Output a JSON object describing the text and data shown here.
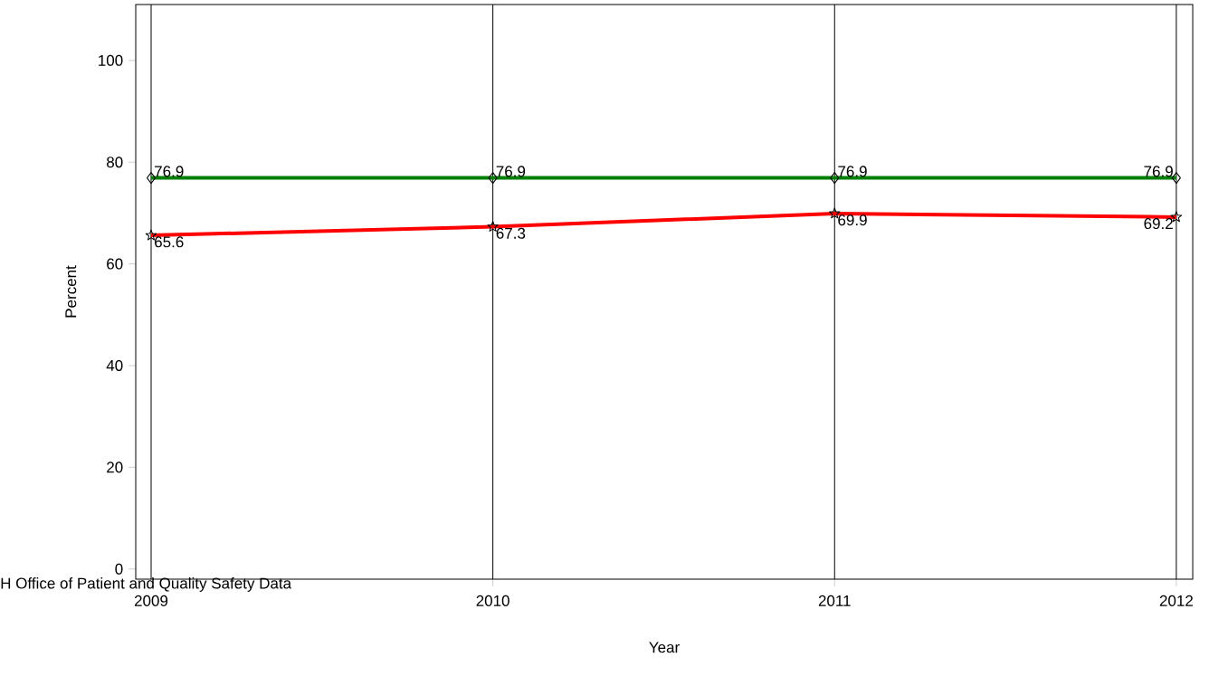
{
  "chart_data": {
    "type": "line",
    "xlabel": "Year",
    "ylabel": "Percent",
    "x": [
      2009,
      2010,
      2011,
      2012
    ],
    "series": [
      {
        "color": "#008000",
        "marker": "diamond",
        "values": [
          76.9,
          76.9,
          76.9,
          76.9
        ]
      },
      {
        "color": "#ff0000",
        "marker": "star",
        "values": [
          65.6,
          67.3,
          69.9,
          69.2
        ]
      }
    ],
    "xlim": [
      2008.955,
      2012.048
    ],
    "ylim": [
      -2,
      111
    ],
    "xticks": [
      2009,
      2010,
      2011,
      2012
    ],
    "yticks": [
      0,
      20,
      40,
      60,
      80,
      100
    ],
    "grid": "x",
    "data_labels": true,
    "annotations": [
      "H Office of Patient and Quality Safety Data"
    ]
  }
}
